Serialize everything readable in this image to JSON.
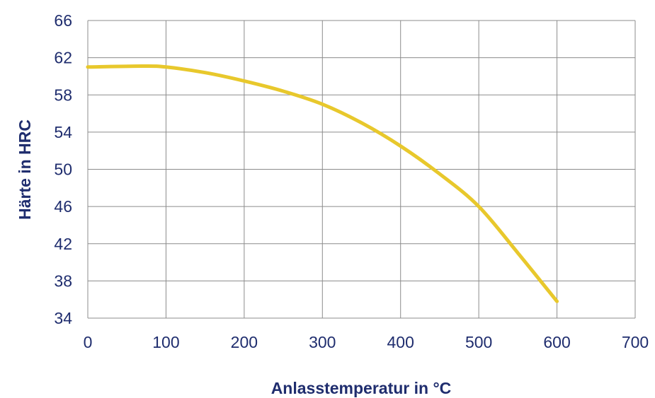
{
  "chart_data": {
    "type": "line",
    "title": "",
    "xlabel": "Anlasstemperatur in °C",
    "ylabel": "Härte in HRC",
    "xlim": [
      0,
      700
    ],
    "ylim": [
      34,
      66
    ],
    "xticks": [
      "0",
      "100",
      "200",
      "300",
      "400",
      "500",
      "600",
      "700"
    ],
    "yticks": [
      "34",
      "38",
      "42",
      "46",
      "50",
      "54",
      "58",
      "62",
      "66"
    ],
    "grid": true,
    "legend": "none",
    "series": [
      {
        "color": "#e8c82c",
        "x": [
          0,
          70,
          100,
          150,
          200,
          250,
          300,
          350,
          400,
          450,
          500,
          550,
          600
        ],
        "y": [
          61.0,
          61.1,
          61.0,
          60.4,
          59.5,
          58.4,
          57.0,
          55.0,
          52.5,
          49.5,
          46.0,
          41.0,
          35.8
        ]
      }
    ]
  }
}
